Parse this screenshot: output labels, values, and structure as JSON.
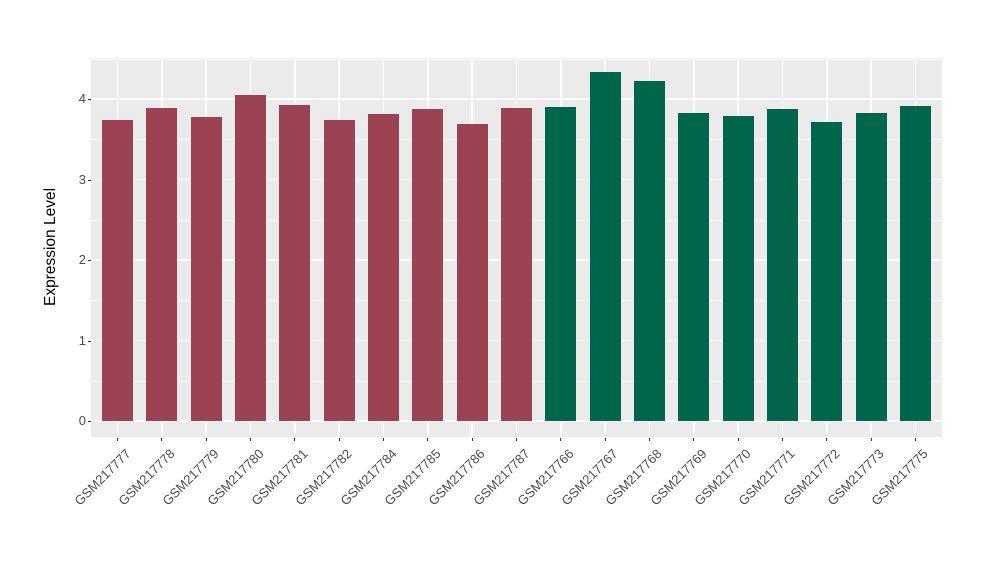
{
  "figure": {
    "background": "#FFFFFF",
    "panel_background": "#EBEBEB",
    "grid_color": "#FFFFFF",
    "axis_text_color": "#4D4D4D",
    "axis_title_color": "#000000",
    "tick_color": "#333333"
  },
  "chart_data": {
    "type": "bar",
    "title": "",
    "xlabel": "",
    "ylabel": "Expression Level",
    "ylim": [
      -0.2,
      4.52
    ],
    "yticks": [
      0,
      1,
      2,
      3,
      4
    ],
    "minor_yticks": [
      0.5,
      1.5,
      2.5,
      3.5,
      4.5
    ],
    "grid": "on",
    "legend": "none",
    "bar_width_fraction": 0.7,
    "categories": [
      "GSM217777",
      "GSM217778",
      "GSM217779",
      "GSM217780",
      "GSM217781",
      "GSM217782",
      "GSM217784",
      "GSM217785",
      "GSM217786",
      "GSM217787",
      "GSM217766",
      "GSM217767",
      "GSM217768",
      "GSM217769",
      "GSM217770",
      "GSM217771",
      "GSM217772",
      "GSM217773",
      "GSM217775"
    ],
    "values": [
      3.74,
      3.89,
      3.78,
      4.05,
      3.92,
      3.74,
      3.81,
      3.87,
      3.69,
      3.89,
      3.9,
      4.33,
      4.22,
      3.82,
      3.79,
      3.88,
      3.72,
      3.83,
      3.91
    ],
    "bar_colors": [
      "#9B4352",
      "#9B4352",
      "#9B4352",
      "#9B4352",
      "#9B4352",
      "#9B4352",
      "#9B4352",
      "#9B4352",
      "#9B4352",
      "#9B4352",
      "#00664B",
      "#00664B",
      "#00664B",
      "#00664B",
      "#00664B",
      "#00664B",
      "#00664B",
      "#00664B",
      "#00664B"
    ],
    "group_colors": {
      "left_group": "#9B4352",
      "right_group": "#00664B"
    }
  }
}
